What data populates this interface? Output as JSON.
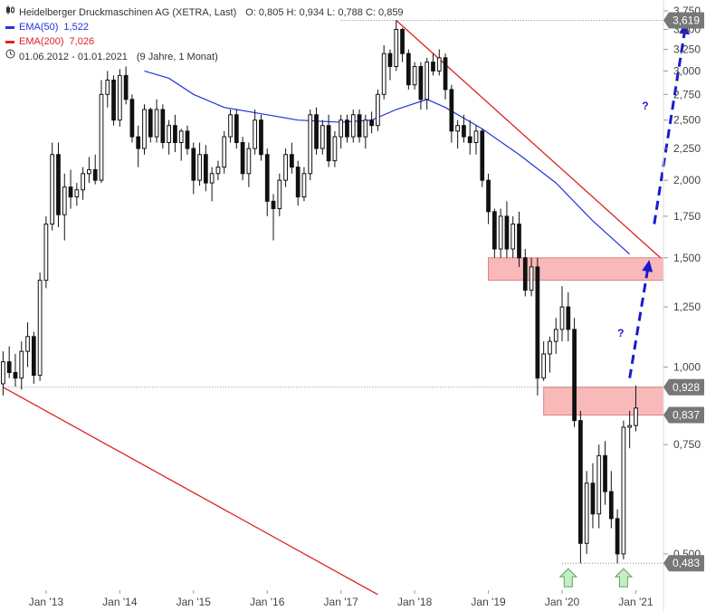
{
  "legend": {
    "title": "Heidelberger Druckmaschinen AG (XETRA, Last)",
    "ohlc": "O: 0,805  H: 0,934  L: 0,788  C: 0,859",
    "ema50_label": "EMA(50)",
    "ema50_value": "1,522",
    "ema200_label": "EMA(200)",
    "ema200_value": "7,026",
    "range": "01.06.2012 - 01.01.2021",
    "range_detail": "(9 Jahre, 1 Monat)",
    "chart_icon": "candlestick-icon",
    "clock_icon": "clock-icon"
  },
  "colors": {
    "ema50": "#2233dd",
    "ema200": "#dd2222",
    "trendline": "#dd2222",
    "zone": "#f9b9b9",
    "projection": "#1a1ad0",
    "candle_up": "#ffffff",
    "candle_down": "#111111",
    "arrow_fill": "#c6eec6",
    "arrow_stroke": "#5aa55a",
    "badge": "#777777"
  },
  "chart_data": {
    "type": "candlestick",
    "y_scale": "log",
    "ylim": [
      0.44,
      3.8
    ],
    "xlim": [
      "2012-06",
      "2021-05"
    ],
    "y_ticks": [
      {
        "v": 0.5,
        "label": "0,500"
      },
      {
        "v": 0.75,
        "label": "0,750"
      },
      {
        "v": 1.0,
        "label": "1,000"
      },
      {
        "v": 1.25,
        "label": "1,250"
      },
      {
        "v": 1.5,
        "label": "1,500"
      },
      {
        "v": 1.75,
        "label": "1,750"
      },
      {
        "v": 2.0,
        "label": "2,000"
      },
      {
        "v": 2.25,
        "label": "2,250"
      },
      {
        "v": 2.5,
        "label": "2,500"
      },
      {
        "v": 2.75,
        "label": "2,750"
      },
      {
        "v": 3.0,
        "label": "3,000"
      },
      {
        "v": 3.25,
        "label": "3,250"
      },
      {
        "v": 3.5,
        "label": "3,500"
      },
      {
        "v": 3.75,
        "label": "3,750"
      }
    ],
    "x_ticks": [
      {
        "t": "2013-01",
        "label": "Jan '13"
      },
      {
        "t": "2014-01",
        "label": "Jan '14"
      },
      {
        "t": "2015-01",
        "label": "Jan '15"
      },
      {
        "t": "2016-01",
        "label": "Jan '16"
      },
      {
        "t": "2017-01",
        "label": "Jan '17"
      },
      {
        "t": "2018-01",
        "label": "Jan '18"
      },
      {
        "t": "2019-01",
        "label": "Jan '19"
      },
      {
        "t": "2020-01",
        "label": "Jan '20"
      },
      {
        "t": "2021-01",
        "label": "Jan '21"
      }
    ],
    "price_badges": [
      {
        "v": 3.619,
        "label": "3,619"
      },
      {
        "v": 0.928,
        "label": "0,928"
      },
      {
        "v": 0.837,
        "label": "0,837"
      },
      {
        "v": 0.483,
        "label": "0,483"
      }
    ],
    "horizontal_lines": [
      {
        "v": 3.619,
        "from": "2017-01"
      },
      {
        "v": 0.928,
        "from": "2012-06"
      },
      {
        "v": 0.483,
        "from": "2020-01"
      }
    ],
    "zones": [
      {
        "from": "2019-01",
        "y1": 1.38,
        "y2": 1.5
      },
      {
        "from": "2019-10",
        "y1": 0.837,
        "y2": 0.928
      }
    ],
    "trendlines": [
      {
        "t1": "2012-06",
        "v1": 0.928,
        "t2": "2017-07",
        "v2": 0.43
      },
      {
        "t1": "2017-10",
        "v1": 3.619,
        "t2": "2021-05",
        "v2": 1.5
      }
    ],
    "projections": [
      {
        "t1": "2020-12",
        "v1": 0.96,
        "t2": "2021-03",
        "v2": 1.45,
        "label": "?",
        "label_t": "2020-10",
        "label_v": 1.12
      },
      {
        "t1": "2021-04",
        "v1": 1.7,
        "t2": "2021-09",
        "v2": 3.5,
        "label": "?",
        "label_t": "2021-02",
        "label_v": 2.6
      }
    ],
    "markers": [
      {
        "t": "2020-02",
        "v": 0.483,
        "shape": "up-arrow"
      },
      {
        "t": "2020-11",
        "v": 0.483,
        "shape": "up-arrow"
      }
    ],
    "ema50": [
      [
        "2014-05",
        3.0
      ],
      [
        "2014-09",
        2.92
      ],
      [
        "2015-01",
        2.75
      ],
      [
        "2015-06",
        2.62
      ],
      [
        "2016-01",
        2.55
      ],
      [
        "2016-06",
        2.5
      ],
      [
        "2017-01",
        2.48
      ],
      [
        "2017-06",
        2.5
      ],
      [
        "2017-10",
        2.6
      ],
      [
        "2018-03",
        2.7
      ],
      [
        "2018-06",
        2.62
      ],
      [
        "2018-12",
        2.42
      ],
      [
        "2019-06",
        2.2
      ],
      [
        "2019-12",
        1.98
      ],
      [
        "2020-06",
        1.72
      ],
      [
        "2020-12",
        1.52
      ]
    ],
    "candles": [
      {
        "t": "2012-06",
        "o": 0.94,
        "h": 1.06,
        "l": 0.9,
        "c": 1.02
      },
      {
        "t": "2012-07",
        "o": 1.02,
        "h": 1.08,
        "l": 0.96,
        "c": 0.98
      },
      {
        "t": "2012-08",
        "o": 0.98,
        "h": 1.05,
        "l": 0.93,
        "c": 0.96
      },
      {
        "t": "2012-09",
        "o": 0.96,
        "h": 1.1,
        "l": 0.92,
        "c": 1.06
      },
      {
        "t": "2012-10",
        "o": 1.06,
        "h": 1.18,
        "l": 1.0,
        "c": 1.12
      },
      {
        "t": "2012-11",
        "o": 1.12,
        "h": 1.14,
        "l": 0.94,
        "c": 0.97
      },
      {
        "t": "2012-12",
        "o": 0.97,
        "h": 1.42,
        "l": 0.95,
        "c": 1.38
      },
      {
        "t": "2013-01",
        "o": 1.38,
        "h": 1.75,
        "l": 1.34,
        "c": 1.7
      },
      {
        "t": "2013-02",
        "o": 1.7,
        "h": 2.3,
        "l": 1.66,
        "c": 2.2
      },
      {
        "t": "2013-03",
        "o": 2.2,
        "h": 2.3,
        "l": 1.68,
        "c": 1.76
      },
      {
        "t": "2013-04",
        "o": 1.76,
        "h": 2.05,
        "l": 1.6,
        "c": 1.95
      },
      {
        "t": "2013-05",
        "o": 1.95,
        "h": 2.08,
        "l": 1.8,
        "c": 1.88
      },
      {
        "t": "2013-06",
        "o": 1.88,
        "h": 1.98,
        "l": 1.82,
        "c": 1.93
      },
      {
        "t": "2013-07",
        "o": 1.93,
        "h": 2.1,
        "l": 1.86,
        "c": 2.05
      },
      {
        "t": "2013-08",
        "o": 2.05,
        "h": 2.18,
        "l": 1.98,
        "c": 2.08
      },
      {
        "t": "2013-09",
        "o": 2.08,
        "h": 2.2,
        "l": 1.97,
        "c": 2.0
      },
      {
        "t": "2013-10",
        "o": 2.0,
        "h": 2.9,
        "l": 1.98,
        "c": 2.75
      },
      {
        "t": "2013-11",
        "o": 2.75,
        "h": 3.0,
        "l": 2.62,
        "c": 2.9
      },
      {
        "t": "2013-12",
        "o": 2.9,
        "h": 2.95,
        "l": 2.45,
        "c": 2.5
      },
      {
        "t": "2014-01",
        "o": 2.5,
        "h": 3.02,
        "l": 2.44,
        "c": 2.95
      },
      {
        "t": "2014-02",
        "o": 2.95,
        "h": 3.05,
        "l": 2.65,
        "c": 2.7
      },
      {
        "t": "2014-03",
        "o": 2.7,
        "h": 2.75,
        "l": 2.3,
        "c": 2.35
      },
      {
        "t": "2014-04",
        "o": 2.35,
        "h": 2.45,
        "l": 2.1,
        "c": 2.25
      },
      {
        "t": "2014-05",
        "o": 2.25,
        "h": 2.65,
        "l": 2.2,
        "c": 2.6
      },
      {
        "t": "2014-06",
        "o": 2.6,
        "h": 2.62,
        "l": 2.3,
        "c": 2.35
      },
      {
        "t": "2014-07",
        "o": 2.35,
        "h": 2.7,
        "l": 2.3,
        "c": 2.6
      },
      {
        "t": "2014-08",
        "o": 2.6,
        "h": 2.65,
        "l": 2.25,
        "c": 2.3
      },
      {
        "t": "2014-09",
        "o": 2.3,
        "h": 2.5,
        "l": 2.2,
        "c": 2.45
      },
      {
        "t": "2014-10",
        "o": 2.45,
        "h": 2.55,
        "l": 2.22,
        "c": 2.3
      },
      {
        "t": "2014-11",
        "o": 2.3,
        "h": 2.42,
        "l": 2.15,
        "c": 2.4
      },
      {
        "t": "2014-12",
        "o": 2.4,
        "h": 2.45,
        "l": 2.2,
        "c": 2.25
      },
      {
        "t": "2015-01",
        "o": 2.25,
        "h": 2.3,
        "l": 1.9,
        "c": 2.0
      },
      {
        "t": "2015-02",
        "o": 2.0,
        "h": 2.3,
        "l": 1.96,
        "c": 2.2
      },
      {
        "t": "2015-03",
        "o": 2.2,
        "h": 2.28,
        "l": 1.92,
        "c": 1.98
      },
      {
        "t": "2015-04",
        "o": 1.98,
        "h": 2.1,
        "l": 1.85,
        "c": 2.05
      },
      {
        "t": "2015-05",
        "o": 2.05,
        "h": 2.15,
        "l": 2.0,
        "c": 2.1
      },
      {
        "t": "2015-06",
        "o": 2.1,
        "h": 2.4,
        "l": 2.05,
        "c": 2.35
      },
      {
        "t": "2015-07",
        "o": 2.35,
        "h": 2.6,
        "l": 2.3,
        "c": 2.55
      },
      {
        "t": "2015-08",
        "o": 2.55,
        "h": 2.6,
        "l": 2.25,
        "c": 2.3
      },
      {
        "t": "2015-09",
        "o": 2.3,
        "h": 2.35,
        "l": 2.0,
        "c": 2.05
      },
      {
        "t": "2015-10",
        "o": 2.05,
        "h": 2.3,
        "l": 1.95,
        "c": 2.25
      },
      {
        "t": "2015-11",
        "o": 2.25,
        "h": 2.6,
        "l": 2.2,
        "c": 2.5
      },
      {
        "t": "2015-12",
        "o": 2.5,
        "h": 2.55,
        "l": 2.15,
        "c": 2.2
      },
      {
        "t": "2016-01",
        "o": 2.2,
        "h": 2.25,
        "l": 1.75,
        "c": 1.85
      },
      {
        "t": "2016-02",
        "o": 1.85,
        "h": 1.9,
        "l": 1.6,
        "c": 1.8
      },
      {
        "t": "2016-03",
        "o": 1.8,
        "h": 2.05,
        "l": 1.75,
        "c": 2.0
      },
      {
        "t": "2016-04",
        "o": 2.0,
        "h": 2.25,
        "l": 1.95,
        "c": 2.2
      },
      {
        "t": "2016-05",
        "o": 2.2,
        "h": 2.3,
        "l": 2.05,
        "c": 2.1
      },
      {
        "t": "2016-06",
        "o": 2.1,
        "h": 2.15,
        "l": 1.82,
        "c": 1.88
      },
      {
        "t": "2016-07",
        "o": 1.88,
        "h": 2.1,
        "l": 1.85,
        "c": 2.05
      },
      {
        "t": "2016-08",
        "o": 2.05,
        "h": 2.6,
        "l": 2.0,
        "c": 2.55
      },
      {
        "t": "2016-09",
        "o": 2.55,
        "h": 2.62,
        "l": 2.2,
        "c": 2.25
      },
      {
        "t": "2016-10",
        "o": 2.25,
        "h": 2.5,
        "l": 2.2,
        "c": 2.45
      },
      {
        "t": "2016-11",
        "o": 2.45,
        "h": 2.55,
        "l": 2.1,
        "c": 2.15
      },
      {
        "t": "2016-12",
        "o": 2.15,
        "h": 2.4,
        "l": 2.1,
        "c": 2.35
      },
      {
        "t": "2017-01",
        "o": 2.35,
        "h": 2.55,
        "l": 2.25,
        "c": 2.5
      },
      {
        "t": "2017-02",
        "o": 2.5,
        "h": 2.55,
        "l": 2.3,
        "c": 2.35
      },
      {
        "t": "2017-03",
        "o": 2.35,
        "h": 2.6,
        "l": 2.3,
        "c": 2.55
      },
      {
        "t": "2017-04",
        "o": 2.55,
        "h": 2.6,
        "l": 2.3,
        "c": 2.35
      },
      {
        "t": "2017-05",
        "o": 2.35,
        "h": 2.55,
        "l": 2.25,
        "c": 2.5
      },
      {
        "t": "2017-06",
        "o": 2.5,
        "h": 2.58,
        "l": 2.38,
        "c": 2.45
      },
      {
        "t": "2017-07",
        "o": 2.45,
        "h": 2.8,
        "l": 2.4,
        "c": 2.75
      },
      {
        "t": "2017-08",
        "o": 2.75,
        "h": 3.3,
        "l": 2.7,
        "c": 3.2
      },
      {
        "t": "2017-09",
        "o": 3.2,
        "h": 3.25,
        "l": 2.9,
        "c": 3.05
      },
      {
        "t": "2017-10",
        "o": 3.05,
        "h": 3.619,
        "l": 3.0,
        "c": 3.5
      },
      {
        "t": "2017-11",
        "o": 3.5,
        "h": 3.52,
        "l": 3.1,
        "c": 3.2
      },
      {
        "t": "2017-12",
        "o": 3.2,
        "h": 3.25,
        "l": 2.8,
        "c": 2.85
      },
      {
        "t": "2018-01",
        "o": 2.85,
        "h": 3.1,
        "l": 2.8,
        "c": 3.05
      },
      {
        "t": "2018-02",
        "o": 3.05,
        "h": 3.1,
        "l": 2.6,
        "c": 2.7
      },
      {
        "t": "2018-03",
        "o": 2.7,
        "h": 3.15,
        "l": 2.6,
        "c": 3.1
      },
      {
        "t": "2018-04",
        "o": 3.1,
        "h": 3.2,
        "l": 2.95,
        "c": 3.0
      },
      {
        "t": "2018-05",
        "o": 3.0,
        "h": 3.25,
        "l": 2.95,
        "c": 3.15
      },
      {
        "t": "2018-06",
        "o": 3.15,
        "h": 3.2,
        "l": 2.7,
        "c": 2.8
      },
      {
        "t": "2018-07",
        "o": 2.8,
        "h": 2.85,
        "l": 2.3,
        "c": 2.4
      },
      {
        "t": "2018-08",
        "o": 2.4,
        "h": 2.5,
        "l": 2.25,
        "c": 2.45
      },
      {
        "t": "2018-09",
        "o": 2.45,
        "h": 2.55,
        "l": 2.3,
        "c": 2.35
      },
      {
        "t": "2018-10",
        "o": 2.35,
        "h": 2.5,
        "l": 2.2,
        "c": 2.3
      },
      {
        "t": "2018-11",
        "o": 2.3,
        "h": 2.45,
        "l": 2.2,
        "c": 2.4
      },
      {
        "t": "2018-12",
        "o": 2.4,
        "h": 2.42,
        "l": 1.95,
        "c": 2.0
      },
      {
        "t": "2019-01",
        "o": 2.0,
        "h": 2.05,
        "l": 1.7,
        "c": 1.78
      },
      {
        "t": "2019-02",
        "o": 1.78,
        "h": 1.8,
        "l": 1.5,
        "c": 1.55
      },
      {
        "t": "2019-03",
        "o": 1.55,
        "h": 1.8,
        "l": 1.5,
        "c": 1.75
      },
      {
        "t": "2019-04",
        "o": 1.75,
        "h": 1.85,
        "l": 1.5,
        "c": 1.55
      },
      {
        "t": "2019-05",
        "o": 1.55,
        "h": 1.75,
        "l": 1.5,
        "c": 1.7
      },
      {
        "t": "2019-06",
        "o": 1.7,
        "h": 1.78,
        "l": 1.45,
        "c": 1.5
      },
      {
        "t": "2019-07",
        "o": 1.5,
        "h": 1.55,
        "l": 1.3,
        "c": 1.33
      },
      {
        "t": "2019-08",
        "o": 1.33,
        "h": 1.5,
        "l": 1.3,
        "c": 1.45
      },
      {
        "t": "2019-09",
        "o": 1.45,
        "h": 1.5,
        "l": 0.9,
        "c": 0.96
      },
      {
        "t": "2019-10",
        "o": 0.96,
        "h": 1.1,
        "l": 0.95,
        "c": 1.05
      },
      {
        "t": "2019-11",
        "o": 1.05,
        "h": 1.12,
        "l": 0.98,
        "c": 1.1
      },
      {
        "t": "2019-12",
        "o": 1.1,
        "h": 1.2,
        "l": 1.05,
        "c": 1.15
      },
      {
        "t": "2020-01",
        "o": 1.15,
        "h": 1.35,
        "l": 1.1,
        "c": 1.25
      },
      {
        "t": "2020-02",
        "o": 1.25,
        "h": 1.32,
        "l": 1.1,
        "c": 1.15
      },
      {
        "t": "2020-03",
        "o": 1.15,
        "h": 1.2,
        "l": 0.8,
        "c": 0.82
      },
      {
        "t": "2020-04",
        "o": 0.82,
        "h": 0.85,
        "l": 0.483,
        "c": 0.52
      },
      {
        "t": "2020-05",
        "o": 0.52,
        "h": 0.68,
        "l": 0.5,
        "c": 0.65
      },
      {
        "t": "2020-06",
        "o": 0.65,
        "h": 0.7,
        "l": 0.55,
        "c": 0.58
      },
      {
        "t": "2020-07",
        "o": 0.58,
        "h": 0.75,
        "l": 0.55,
        "c": 0.72
      },
      {
        "t": "2020-08",
        "o": 0.72,
        "h": 0.76,
        "l": 0.6,
        "c": 0.63
      },
      {
        "t": "2020-09",
        "o": 0.63,
        "h": 0.68,
        "l": 0.55,
        "c": 0.57
      },
      {
        "t": "2020-10",
        "o": 0.57,
        "h": 0.59,
        "l": 0.483,
        "c": 0.5
      },
      {
        "t": "2020-11",
        "o": 0.5,
        "h": 0.82,
        "l": 0.49,
        "c": 0.8
      },
      {
        "t": "2020-12",
        "o": 0.8,
        "h": 0.85,
        "l": 0.74,
        "c": 0.805
      },
      {
        "t": "2021-01",
        "o": 0.805,
        "h": 0.934,
        "l": 0.788,
        "c": 0.859
      }
    ]
  }
}
